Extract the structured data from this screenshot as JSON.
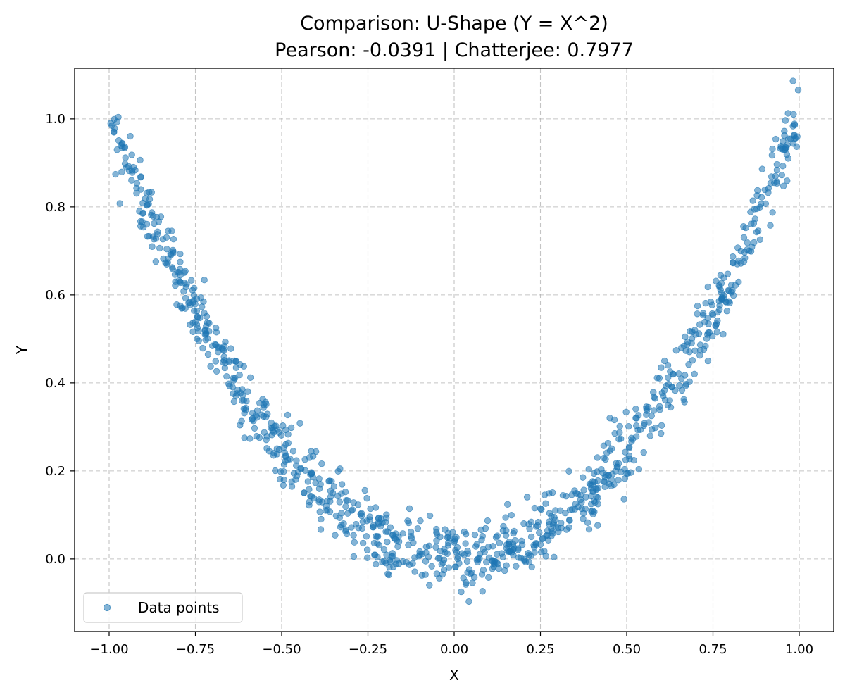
{
  "chart_data": {
    "type": "scatter",
    "title_line1": "Comparison: U-Shape (Y = X^2)",
    "title_line2": "Pearson: -0.0391 | Chatterjee: 0.7977",
    "xlabel": "X",
    "ylabel": "Y",
    "xlim": [
      -1.1,
      1.1
    ],
    "ylim": [
      -0.165,
      1.115
    ],
    "x_ticks": [
      -1.0,
      -0.75,
      -0.5,
      -0.25,
      0.0,
      0.25,
      0.5,
      0.75,
      1.0
    ],
    "x_tick_labels": [
      "−1.00",
      "−0.75",
      "−0.50",
      "−0.25",
      "0.00",
      "0.25",
      "0.50",
      "0.75",
      "1.00"
    ],
    "y_ticks": [
      0.0,
      0.2,
      0.4,
      0.6,
      0.8,
      1.0
    ],
    "y_tick_labels": [
      "0.0",
      "0.2",
      "0.4",
      "0.6",
      "0.8",
      "1.0"
    ],
    "grid": true,
    "legend": {
      "label": "Data points",
      "placement": "lower-left"
    },
    "series": [
      {
        "name": "Data points",
        "color": "#1f77b4",
        "n_points": 1000,
        "x_range": [
          -1.0,
          1.0
        ],
        "model": "y = x^2 + noise",
        "noise_std": 0.04,
        "seed": 42
      }
    ]
  }
}
